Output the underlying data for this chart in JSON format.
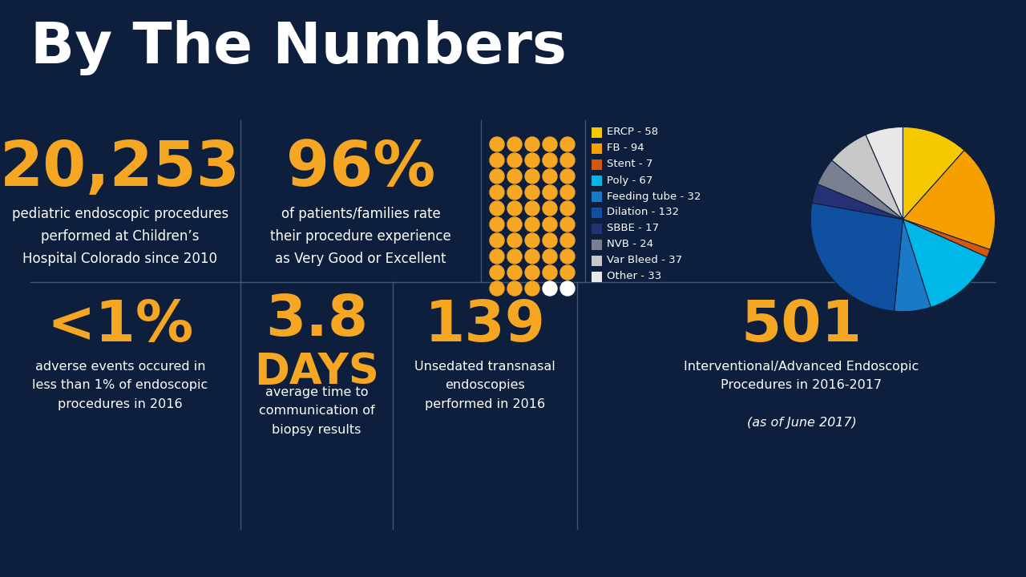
{
  "bg_color": "#0d1f3c",
  "gold_color": "#f5a623",
  "white_color": "#ffffff",
  "divider_color": "#546e8a",
  "title": "By The Numbers",
  "stat1_big": "20,253",
  "stat1_sub": "pediatric endoscopic procedures\nperformed at Children’s\nHospital Colorado since 2010",
  "stat2_big": "96%",
  "stat2_sub": "of patients/families rate\ntheir procedure experience\nas Very Good or Excellent",
  "stat3_big": "<1%",
  "stat3_sub": "adverse events occured in\nless than 1% of endoscopic\nprocedures in 2016",
  "stat4_big": "3.8",
  "stat4_mid": "DAYS",
  "stat4_sub": "average time to\ncommunication of\nbiopsy results",
  "stat5_big": "139",
  "stat5_sub": "Unsedated transnasal\nendoscopies\nperformed in 2016",
  "stat6_big": "501",
  "stat6_sub1": "Interventional/Advanced Endoscopic\nProcedures in 2016-2017",
  "stat6_sub2": "(as of June 2017)",
  "dot_rows": 10,
  "dot_cols": 5,
  "dot_filled_gold": 48,
  "dot_total": 50,
  "pie_values": [
    58,
    94,
    7,
    67,
    32,
    132,
    17,
    24,
    37,
    33
  ],
  "pie_colors": [
    "#f5c800",
    "#f5a000",
    "#d4590a",
    "#00b8e8",
    "#1a7ac8",
    "#1050a0",
    "#263075",
    "#7a8090",
    "#c8c8c8",
    "#e8e8e8"
  ],
  "legend_labels": [
    "ERCP - 58",
    "FB - 94",
    "Stent - 7",
    "Poly - 67",
    "Feeding tube - 32",
    "Dilation - 132",
    "SBBE - 17",
    "NVB - 24",
    "Var Bleed - 37",
    "Other - 33"
  ]
}
